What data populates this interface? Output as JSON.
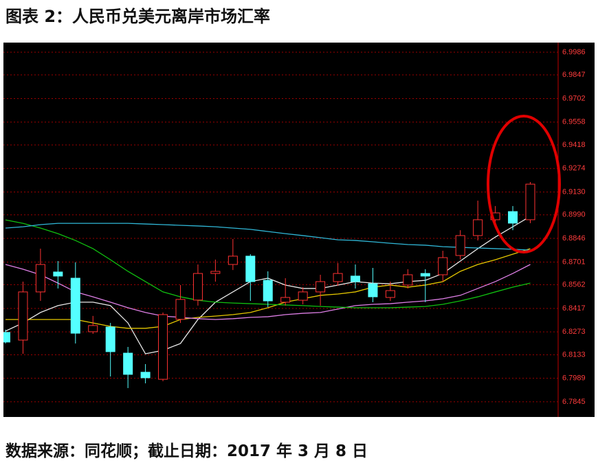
{
  "chart_data": {
    "type": "candlestick",
    "title": "图表 2：人民币兑美元离岸市场汇率",
    "source": "数据来源：同花顺；截止日期：2017 年 3 月 8 日",
    "open": [
      6.827,
      6.8223,
      6.8518,
      6.864,
      6.8602,
      6.8274,
      6.8303,
      6.8143,
      6.8026,
      6.7983,
      6.835,
      6.8468,
      6.8631,
      6.8686,
      6.8737,
      6.8589,
      6.8455,
      6.8467,
      6.8518,
      6.8581,
      6.8615,
      6.8568,
      6.8484,
      6.856,
      6.8631,
      6.8623,
      6.8741,
      6.8863,
      6.896,
      6.901,
      6.896
    ],
    "high": [
      6.8287,
      6.8581,
      6.8783,
      6.8707,
      6.8699,
      6.8371,
      6.8328,
      6.8181,
      6.8076,
      6.8392,
      6.856,
      6.8686,
      6.8716,
      6.8842,
      6.8749,
      6.8644,
      6.8602,
      6.8547,
      6.8623,
      6.8695,
      6.8686,
      6.8665,
      6.8581,
      6.8657,
      6.8657,
      6.877,
      6.8896,
      6.9077,
      6.9044,
      6.9044,
      6.9191
    ],
    "low": [
      6.8202,
      6.8139,
      6.8463,
      6.8539,
      6.8202,
      6.8261,
      6.8,
      6.7929,
      6.7958,
      6.7971,
      6.8328,
      6.8434,
      6.8581,
      6.8652,
      6.8463,
      6.8425,
      6.8434,
      6.8442,
      6.8434,
      6.8556,
      6.8539,
      6.8455,
      6.8463,
      6.8539,
      6.8455,
      6.8581,
      6.8716,
      6.8833,
      6.8939,
      6.8896,
      6.8939
    ],
    "close": [
      6.8211,
      6.8518,
      6.8686,
      6.8615,
      6.8265,
      6.8312,
      6.8152,
      6.8013,
      6.7992,
      6.8379,
      6.8472,
      6.8631,
      6.8644,
      6.8737,
      6.8581,
      6.8463,
      6.8484,
      6.8518,
      6.8581,
      6.8631,
      6.8581,
      6.8488,
      6.8526,
      6.8623,
      6.8615,
      6.8728,
      6.8863,
      6.896,
      6.9002,
      6.8939,
      6.9178
    ],
    "up_color": "#ff3232",
    "down_color": "#54ffff",
    "series": [
      {
        "color": "#e8e8e8",
        "values": [
          6.8278,
          6.8328,
          6.8392,
          6.8434,
          6.8455,
          6.8455,
          6.8434,
          6.8328,
          6.8139,
          6.816,
          6.8202,
          6.8349,
          6.8455,
          6.8518,
          6.8581,
          6.8602,
          6.856,
          6.8539,
          6.8539,
          6.856,
          6.8581,
          6.8572,
          6.8568,
          6.8581,
          6.8589,
          6.8631,
          6.8707,
          6.8783,
          6.8854,
          6.8917,
          6.8981
        ]
      },
      {
        "color": "#e6c800",
        "values": [
          6.8349,
          6.8349,
          6.8349,
          6.8349,
          6.8349,
          6.8328,
          6.8307,
          6.8295,
          6.8295,
          6.8307,
          6.8349,
          6.8362,
          6.837,
          6.8379,
          6.8392,
          6.8421,
          6.8455,
          6.8476,
          6.8497,
          6.8505,
          6.8518,
          6.8547,
          6.856,
          6.8547,
          6.856,
          6.8581,
          6.8644,
          6.8686,
          6.8715,
          6.8749,
          6.8783
        ]
      },
      {
        "color": "#e080e8",
        "values": [
          6.8686,
          6.8657,
          6.8623,
          6.8572,
          6.8518,
          6.8488,
          6.8455,
          6.8421,
          6.8392,
          6.837,
          6.8362,
          6.8354,
          6.8349,
          6.8354,
          6.8362,
          6.8366,
          6.8379,
          6.8387,
          6.8392,
          6.8413,
          6.8434,
          6.8442,
          6.8446,
          6.8455,
          6.8463,
          6.8476,
          6.8497,
          6.8539,
          6.8581,
          6.8631,
          6.8686
        ]
      },
      {
        "color": "#10c010",
        "values": [
          6.8959,
          6.8938,
          6.8909,
          6.8875,
          6.8833,
          6.8783,
          6.8715,
          6.8644,
          6.8581,
          6.8518,
          6.8488,
          6.8467,
          6.8455,
          6.845,
          6.8446,
          6.8442,
          6.8438,
          6.8434,
          6.8429,
          6.8425,
          6.8421,
          6.8421,
          6.8421,
          6.8425,
          6.8429,
          6.8442,
          6.8463,
          6.8488,
          6.8518,
          6.8547,
          6.8572
        ]
      },
      {
        "color": "#30b8d8",
        "values": [
          6.8909,
          6.8917,
          6.893,
          6.8938,
          6.8938,
          6.8938,
          6.8938,
          6.8938,
          6.8934,
          6.893,
          6.8926,
          6.8922,
          6.8917,
          6.8909,
          6.8901,
          6.8888,
          6.8875,
          6.8863,
          6.885,
          6.8837,
          6.8833,
          6.8825,
          6.8816,
          6.8808,
          6.8804,
          6.8795,
          6.8791,
          6.8787,
          6.8783,
          6.8779,
          6.8774
        ]
      }
    ],
    "ylim": [
      6.7752,
      7.0045
    ],
    "yticks": [
      6.9986,
      6.9847,
      6.9702,
      6.9558,
      6.9418,
      6.9274,
      {
        "value": 6.913,
        "label": "6.9130"
      },
      {
        "value": 6.899,
        "label": "6.8990"
      },
      6.8846,
      6.8701,
      6.8562,
      6.8417,
      6.8273,
      6.8133,
      6.7989,
      6.7845
    ],
    "grid": true,
    "grid_color": "#a00000"
  }
}
